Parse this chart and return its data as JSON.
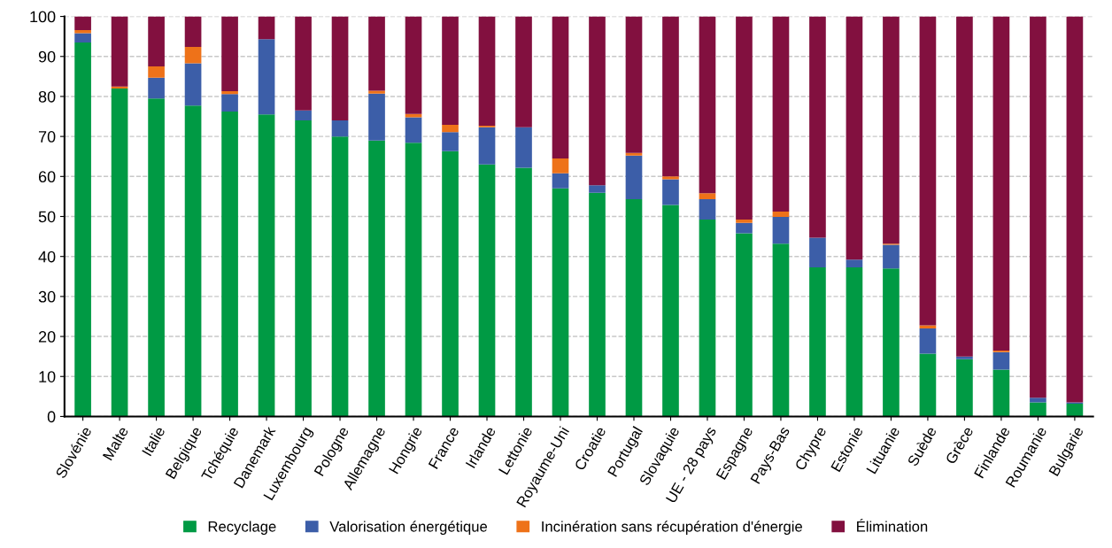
{
  "chart_data": {
    "type": "bar",
    "stacked": true,
    "categories": [
      "Slovénie",
      "Malte",
      "Italie",
      "Belgique",
      "Tchéquie",
      "Danemark",
      "Luxembourg",
      "Pologne",
      "Allemagne",
      "Hongrie",
      "France",
      "Irlande",
      "Lettonie",
      "Royaume-Uni",
      "Croatie",
      "Portugal",
      "Slovaquie",
      "UE - 28 pays",
      "Espagne",
      "Pays-Bas",
      "Chypre",
      "Estonie",
      "Lituanie",
      "Suède",
      "Grèce",
      "Finlande",
      "Roumanie",
      "Bulgarie"
    ],
    "series": [
      {
        "name": "Recyclage",
        "color": "#009a44",
        "values": [
          93.5,
          82,
          79.5,
          77.7,
          76.2,
          75.5,
          74,
          70,
          69,
          68.4,
          66.3,
          63,
          62.2,
          57,
          55.9,
          54.3,
          52.9,
          49.2,
          45.8,
          43.2,
          37.3,
          37.3,
          37,
          15.7,
          14.3,
          11.7,
          3.5,
          3.2
        ]
      },
      {
        "name": "Valorisation énergétique",
        "color": "#3c5ea8",
        "values": [
          2.3,
          0,
          5.2,
          10.6,
          4.4,
          18.8,
          2.5,
          4,
          11.7,
          6.4,
          4.8,
          9.3,
          10.1,
          3.8,
          1.9,
          10.9,
          6.4,
          5.1,
          2.6,
          6.7,
          7.4,
          1.9,
          5.9,
          6.3,
          0.7,
          4.4,
          1.2,
          0.3
        ]
      },
      {
        "name": "Incinération sans récupération d'énergie",
        "color": "#ee7219",
        "values": [
          0.8,
          0.5,
          2.8,
          4.1,
          0.7,
          0,
          0,
          0,
          0.7,
          0.8,
          1.8,
          0.4,
          0,
          3.7,
          0,
          0.7,
          0.7,
          1.5,
          0.8,
          1.3,
          0,
          0,
          0.3,
          0.8,
          0,
          0.4,
          0,
          0
        ]
      },
      {
        "name": "Élimination",
        "color": "#82103f",
        "values": [
          3.4,
          17.5,
          12.5,
          7.6,
          18.7,
          5.7,
          23.5,
          26,
          18.6,
          24.4,
          27.1,
          27.3,
          27.7,
          35.5,
          42.2,
          34.1,
          40,
          44.2,
          50.8,
          48.8,
          55.3,
          60.8,
          56.8,
          77.2,
          85,
          83.5,
          95.3,
          96.5
        ]
      }
    ],
    "ylim": [
      0,
      100
    ],
    "yticks": [
      0,
      10,
      20,
      30,
      40,
      50,
      60,
      70,
      80,
      90,
      100
    ],
    "grid": "y",
    "legend": "bottom"
  }
}
